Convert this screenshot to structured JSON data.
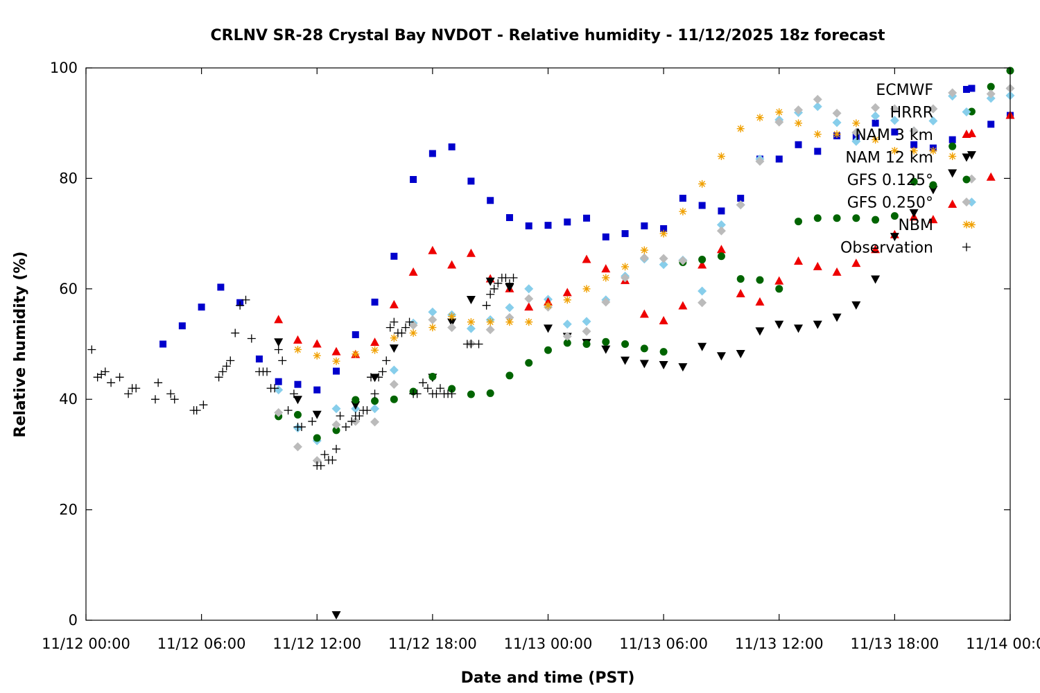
{
  "chart_data": {
    "type": "scatter",
    "title": "CRLNV SR-28 Crystal Bay NVDOT - Relative humidity - 11/12/2025 18z forecast",
    "xlabel": "Date and time (PST)",
    "ylabel": "Relative humidity (%)",
    "xlim": [
      "11/12 00:00",
      "11/14 00:00"
    ],
    "ylim": [
      0,
      100
    ],
    "x_unit": "hours since 11/12 00:00 PST",
    "x_ticks": [
      "11/12 00:00",
      "11/12 06:00",
      "11/12 12:00",
      "11/12 18:00",
      "11/13 00:00",
      "11/13 06:00",
      "11/13 12:00",
      "11/13 18:00",
      "11/14 00:00"
    ],
    "y_ticks": [
      "0",
      "20",
      "40",
      "60",
      "80",
      "100"
    ],
    "grid": false,
    "legend_position": "top-right",
    "series": [
      {
        "name": "ECMWF",
        "marker": "square",
        "color": "#0000cc",
        "x": [
          4,
          5,
          6,
          7,
          8,
          9,
          10,
          11,
          12,
          13,
          14,
          15,
          16,
          17,
          18,
          19,
          20,
          21,
          22,
          23,
          24,
          25,
          26,
          27,
          28,
          29,
          30,
          31,
          32,
          33,
          34,
          35,
          36,
          37,
          38,
          39,
          40,
          41,
          42,
          43,
          44,
          45,
          46,
          47,
          48
        ],
        "y": [
          50,
          53.3,
          56.7,
          60.3,
          57.5,
          47.3,
          43.2,
          42.7,
          41.7,
          45.1,
          51.7,
          57.6,
          65.9,
          79.8,
          84.5,
          85.7,
          79.5,
          76,
          72.9,
          71.4,
          71.5,
          72.1,
          72.8,
          69.4,
          70,
          71.4,
          70.9,
          76.4,
          75.1,
          74.1,
          76.4,
          83.5,
          83.5,
          86.1,
          84.9,
          87.7,
          87.5,
          90,
          88.4,
          86.1,
          85.5,
          87,
          96.3,
          89.8,
          91.4
        ]
      },
      {
        "name": "HRRR",
        "marker": "diamond",
        "color": "#87ceeb",
        "x": [
          10,
          11,
          12,
          13,
          14,
          15,
          16,
          17,
          18,
          19,
          20,
          21,
          22,
          23,
          24,
          25,
          26,
          27,
          28,
          29,
          30,
          31,
          32,
          33,
          34,
          35,
          36,
          37,
          38,
          39,
          40,
          41,
          42,
          43,
          44,
          45,
          46,
          47,
          48
        ],
        "y": [
          41.7,
          34.8,
          32.5,
          38.3,
          38.3,
          38.3,
          45.3,
          53.8,
          55.8,
          55.3,
          52.8,
          54.4,
          56.6,
          60,
          58.1,
          53.6,
          54.1,
          58,
          62.3,
          65.4,
          64.4,
          65.2,
          59.6,
          71.6,
          75.2,
          83.5,
          90.6,
          91.9,
          93,
          90.1,
          86.7,
          91.3,
          90.5,
          88.6,
          90.4,
          94.9,
          75.7,
          94.5,
          95
        ]
      },
      {
        "name": "NAM 3 km",
        "marker": "triangle-up",
        "color": "#ee0000",
        "x": [
          10,
          11,
          12,
          13,
          14,
          15,
          16,
          17,
          18,
          19,
          20,
          21,
          22,
          23,
          24,
          25,
          26,
          27,
          28,
          29,
          30,
          31,
          32,
          33,
          34,
          35,
          36,
          37,
          38,
          39,
          40,
          41,
          42,
          43,
          44,
          45,
          46,
          47,
          48
        ],
        "y": [
          54.4,
          50.7,
          50,
          48.6,
          48.1,
          50.3,
          57.1,
          63,
          66.9,
          64.3,
          66.4,
          61.8,
          60,
          56.7,
          57.6,
          59.3,
          65.3,
          63.6,
          61.5,
          55.4,
          54.2,
          56.9,
          64.3,
          67.1,
          59.1,
          57.6,
          61.4,
          65,
          64,
          63,
          64.6,
          67.1,
          69.8,
          73,
          72.5,
          75.3,
          88.1,
          80.2,
          91.4
        ]
      },
      {
        "name": "NAM 12 km",
        "marker": "triangle-down",
        "color": "#000000",
        "x": [
          10,
          11,
          12,
          13,
          14,
          15,
          16,
          18,
          19,
          20,
          21,
          22,
          24,
          25,
          26,
          27,
          28,
          29,
          30,
          31,
          32,
          33,
          34,
          35,
          36,
          37,
          38,
          39,
          40,
          41,
          42,
          43,
          44,
          45,
          46
        ],
        "y": [
          50.4,
          40,
          37.3,
          1,
          39,
          44,
          49.3,
          44,
          54,
          58.1,
          61.4,
          60.3,
          52.9,
          51.4,
          50.3,
          49.1,
          47.1,
          46.5,
          46.3,
          45.9,
          49.6,
          47.9,
          48.3,
          52.4,
          53.6,
          52.9,
          53.6,
          54.9,
          57.1,
          61.8,
          69.5,
          73.8,
          78,
          81,
          84.3
        ]
      },
      {
        "name": "GFS 0.125°",
        "marker": "circle",
        "color": "#006400",
        "x": [
          10,
          11,
          12,
          13,
          14,
          15,
          16,
          17,
          18,
          19,
          20,
          21,
          22,
          23,
          24,
          25,
          26,
          27,
          28,
          29,
          30,
          31,
          32,
          33,
          34,
          35,
          36,
          37,
          38,
          39,
          40,
          41,
          42,
          43,
          44,
          45,
          46,
          47,
          48
        ],
        "y": [
          36.9,
          37.2,
          33,
          34.4,
          39.9,
          39.7,
          40,
          41.4,
          44.1,
          41.9,
          40.9,
          41.1,
          44.3,
          46.6,
          48.9,
          50.2,
          50,
          50.4,
          50,
          49.2,
          48.6,
          64.8,
          65.3,
          65.9,
          61.8,
          61.6,
          60,
          72.2,
          72.8,
          72.8,
          72.8,
          72.5,
          73.2,
          79.4,
          78.8,
          85.8,
          92.1,
          96.6,
          99.5
        ]
      },
      {
        "name": "GFS 0.250°",
        "marker": "diamond",
        "color": "#bbbbbb",
        "x": [
          10,
          11,
          12,
          13,
          14,
          15,
          16,
          17,
          18,
          19,
          20,
          21,
          22,
          23,
          24,
          25,
          26,
          27,
          28,
          29,
          30,
          31,
          32,
          33,
          34,
          35,
          36,
          37,
          38,
          39,
          40,
          41,
          42,
          43,
          44,
          45,
          46,
          47,
          48
        ],
        "y": [
          37.6,
          31.4,
          28.9,
          35.4,
          36,
          35.9,
          42.7,
          53.4,
          54.4,
          53,
          50.1,
          52.6,
          54.8,
          58.2,
          56.7,
          51.4,
          52.3,
          57.6,
          62,
          65.6,
          65.5,
          65.1,
          57.5,
          70.5,
          75.2,
          83.1,
          90.2,
          92.4,
          94.3,
          91.8,
          88.3,
          92.8,
          92.6,
          88.6,
          92.6,
          95.5,
          79.9,
          95.3,
          96.3
        ]
      },
      {
        "name": "NBM",
        "marker": "asterisk",
        "color": "#f0a000",
        "x": [
          11,
          12,
          13,
          14,
          15,
          16,
          17,
          18,
          19,
          20,
          21,
          22,
          23,
          24,
          25,
          26,
          27,
          28,
          29,
          30,
          31,
          32,
          33,
          34,
          35,
          36,
          37,
          38,
          39,
          40,
          41,
          42,
          43,
          44,
          45,
          46
        ],
        "y": [
          49,
          47.9,
          46.9,
          48.2,
          48.9,
          51.1,
          52,
          53,
          55,
          54,
          54,
          54,
          54,
          57,
          58,
          60,
          62,
          64,
          67,
          70,
          74,
          79,
          84,
          89,
          91,
          92,
          90,
          88,
          88,
          90,
          87,
          85,
          85,
          85,
          84,
          71.6
        ]
      },
      {
        "name": "Observation",
        "marker": "plus",
        "color": "#000000",
        "x": [
          0.3,
          0.6,
          0.8,
          1,
          1.3,
          1.75,
          2.2,
          2.4,
          2.6,
          3.6,
          3.75,
          4.4,
          4.6,
          5.6,
          5.75,
          6.1,
          6.9,
          7.1,
          7.3,
          7.5,
          7.75,
          8,
          8.3,
          8.6,
          9,
          9.2,
          9.4,
          9.6,
          9.8,
          10,
          10.2,
          10.5,
          10.8,
          11,
          11.2,
          11.75,
          12,
          12.2,
          12.4,
          12.6,
          12.8,
          13,
          13.2,
          13.5,
          13.8,
          14,
          14.2,
          14.4,
          14.6,
          14.8,
          15,
          15.2,
          15.4,
          15.6,
          15.8,
          16,
          16.2,
          16.4,
          16.6,
          16.8,
          17,
          17.2,
          17.5,
          17.75,
          18,
          18.2,
          18.4,
          18.6,
          18.8,
          19,
          19.8,
          20,
          20.4,
          20.8,
          21,
          21.2,
          21.4,
          21.6,
          21.8,
          22,
          22.2
        ],
        "y": [
          49,
          44,
          44.5,
          45,
          43,
          44,
          41,
          42,
          42,
          40,
          43,
          41,
          40,
          38,
          38,
          39,
          44,
          45,
          46,
          47,
          52,
          57,
          58,
          51,
          45,
          45,
          45,
          42,
          42,
          49,
          47,
          38,
          41,
          35,
          35,
          36,
          28,
          28,
          30,
          29,
          29,
          31,
          37,
          35,
          36,
          37,
          37,
          38,
          38,
          44,
          41,
          44,
          45,
          47,
          53,
          54,
          52,
          52,
          53,
          54,
          41,
          41,
          43,
          42,
          41,
          41,
          42,
          41,
          41,
          41,
          50,
          50,
          50,
          57,
          59,
          60,
          61,
          62,
          62,
          61,
          62
        ]
      }
    ]
  }
}
